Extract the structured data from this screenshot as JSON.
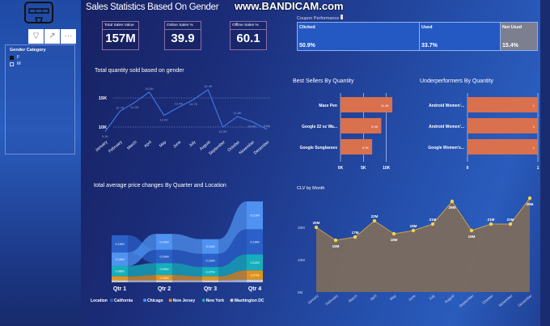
{
  "header": {
    "title": "Sales Statistics Based On Gender",
    "watermark": "www.BANDICAM.com"
  },
  "toolbar": {
    "filter_icon": "filter-icon",
    "focus_icon": "focus-mode-icon",
    "more_label": "···"
  },
  "slicer": {
    "title": "Gender Category",
    "options": [
      {
        "label": "F",
        "checked": true
      },
      {
        "label": "M",
        "checked": false
      }
    ]
  },
  "kpis": [
    {
      "label": "Total Sales Value",
      "value": "157M"
    },
    {
      "label": "Online Sales %",
      "value": "39.9"
    },
    {
      "label": "Offline Sales %",
      "value": "60.1"
    }
  ],
  "coupon": {
    "title": "Coupon Performance",
    "segments": [
      {
        "label": "Clicked",
        "value": "50.9%",
        "color": "#2458c2"
      },
      {
        "label": "Used",
        "value": "33.7%",
        "color": "#2458c2"
      },
      {
        "label": "Not Used",
        "value": "15.4%",
        "color": "#7b7f8f"
      }
    ]
  },
  "chart_data": [
    {
      "type": "line",
      "title": "Total quantity sold based on gender",
      "categories": [
        "January",
        "February",
        "March",
        "April",
        "May",
        "June",
        "July",
        "August",
        "September",
        "October",
        "November",
        "December"
      ],
      "values": [
        9.2,
        12.7,
        14.2,
        16.0,
        12.0,
        13.4,
        14.7,
        16.4,
        10.0,
        11.8,
        10.9,
        9.6
      ],
      "data_labels": [
        "9.2K",
        "12.7K",
        "14.2K",
        "16.0K",
        "12.0K",
        "13.4K",
        "14.7K",
        "16.4K",
        "10.0K",
        "11.8K",
        "10.9K",
        "9.6K"
      ],
      "y_ticks": [
        "10K",
        "15K"
      ],
      "y_tick_values": [
        10,
        15
      ],
      "unit": "K",
      "grid": true,
      "color": "#3f6fd8"
    },
    {
      "type": "bar",
      "orientation": "horizontal",
      "title": "Best Sellers By Quantity",
      "categories": [
        "Maze Pen",
        "Google 22 oz Wa...",
        "Google Sunglasses"
      ],
      "values": [
        11.3,
        8.9,
        6.9
      ],
      "data_labels": [
        "11.3K",
        "8.9K",
        "6.9K"
      ],
      "x_ticks": [
        "0K",
        "5K",
        "10K"
      ],
      "x_tick_values": [
        0,
        5,
        10
      ],
      "xlim": [
        0,
        12
      ],
      "color": "#d9704e"
    },
    {
      "type": "bar",
      "orientation": "horizontal",
      "title": "Underperformers By Quantity",
      "categories": [
        "Android Women'...",
        "Android Women'...",
        "Google Women's..."
      ],
      "values": [
        1,
        1,
        1
      ],
      "data_labels": [
        "1",
        "1",
        "1"
      ],
      "x_ticks": [
        "0",
        "1"
      ],
      "x_tick_values": [
        0,
        1
      ],
      "xlim": [
        0,
        1
      ],
      "color": "#d9704e"
    },
    {
      "type": "ribbon",
      "title": "total average price changes By Quarter and Location",
      "categories": [
        "Qtr 1",
        "Qtr 2",
        "Qtr 3",
        "Qtr 4"
      ],
      "legend_title": "Location",
      "series": [
        {
          "name": "California",
          "values": [
            0.13,
            0.1,
            0.1,
            0.19
          ],
          "labels": [
            "0.13M",
            "0.10M",
            "0.10M",
            "0.19M"
          ],
          "color": "#2a60c8"
        },
        {
          "name": "Chicago",
          "values": [
            0.1,
            0.12,
            0.11,
            0.21
          ],
          "labels": [
            "0.10M",
            "0.12M",
            "0.11M",
            "0.21M"
          ],
          "color": "#4f92f2"
        },
        {
          "name": "New Jersey",
          "values": [
            0.03,
            0.04,
            0.03,
            0.07
          ],
          "labels": [
            "",
            "0.04M",
            "",
            "0.07M"
          ],
          "color": "#e0921e"
        },
        {
          "name": "New York",
          "values": [
            0.08,
            0.09,
            0.07,
            0.12
          ],
          "labels": [
            "0.08M",
            "0.09M",
            "0.07M",
            "0.12M"
          ],
          "color": "#16aebb"
        },
        {
          "name": "Washington DC",
          "values": [
            0.015,
            0.015,
            0.015,
            0.02
          ],
          "labels": [
            "",
            "",
            "",
            ""
          ],
          "color": "#c9cbd6"
        }
      ],
      "legend_position": "bottom"
    },
    {
      "type": "area",
      "title": "CLV by Month",
      "categories": [
        "January",
        "February",
        "March",
        "April",
        "May",
        "June",
        "July",
        "August",
        "September",
        "October",
        "November",
        "December"
      ],
      "values": [
        20,
        16,
        17,
        22,
        18,
        19,
        21,
        28,
        19,
        21,
        21,
        29
      ],
      "data_labels": [
        "20M",
        "16M",
        "17M",
        "22M",
        "18M",
        "19M",
        "21M",
        "28M",
        "19M",
        "21M",
        "21M",
        "29M"
      ],
      "y_ticks": [
        "0M",
        "10M",
        "20M"
      ],
      "y_tick_values": [
        0,
        10,
        20
      ],
      "ylim": [
        0,
        30
      ],
      "fill": "#7b6c5e",
      "line": "#c9a24e",
      "marker": "#f3d44a"
    }
  ]
}
